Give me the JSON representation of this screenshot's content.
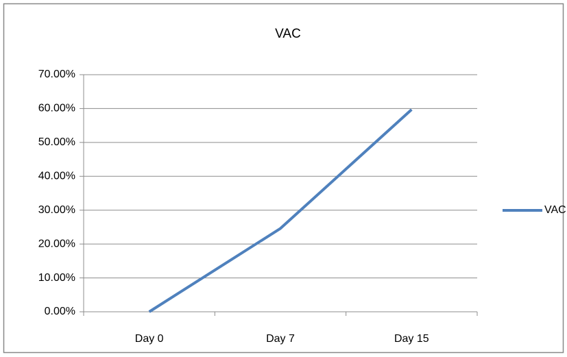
{
  "chart_data": {
    "type": "line",
    "title": "VAC",
    "categories": [
      "Day 0",
      "Day 7",
      "Day 15"
    ],
    "series": [
      {
        "name": "VAC",
        "color": "#4f81bd",
        "values": [
          0,
          24.6,
          59.7
        ]
      }
    ],
    "ylim": [
      0,
      70
    ],
    "yticks": [
      {
        "value": 0,
        "label": "0.00%"
      },
      {
        "value": 10,
        "label": "10.00%"
      },
      {
        "value": 20,
        "label": "20.00%"
      },
      {
        "value": 30,
        "label": "30.00%"
      },
      {
        "value": 40,
        "label": "40.00%"
      },
      {
        "value": 50,
        "label": "50.00%"
      },
      {
        "value": 60,
        "label": "60.00%"
      },
      {
        "value": 70,
        "label": "70.00%"
      }
    ],
    "grid": true,
    "legend": "right"
  }
}
